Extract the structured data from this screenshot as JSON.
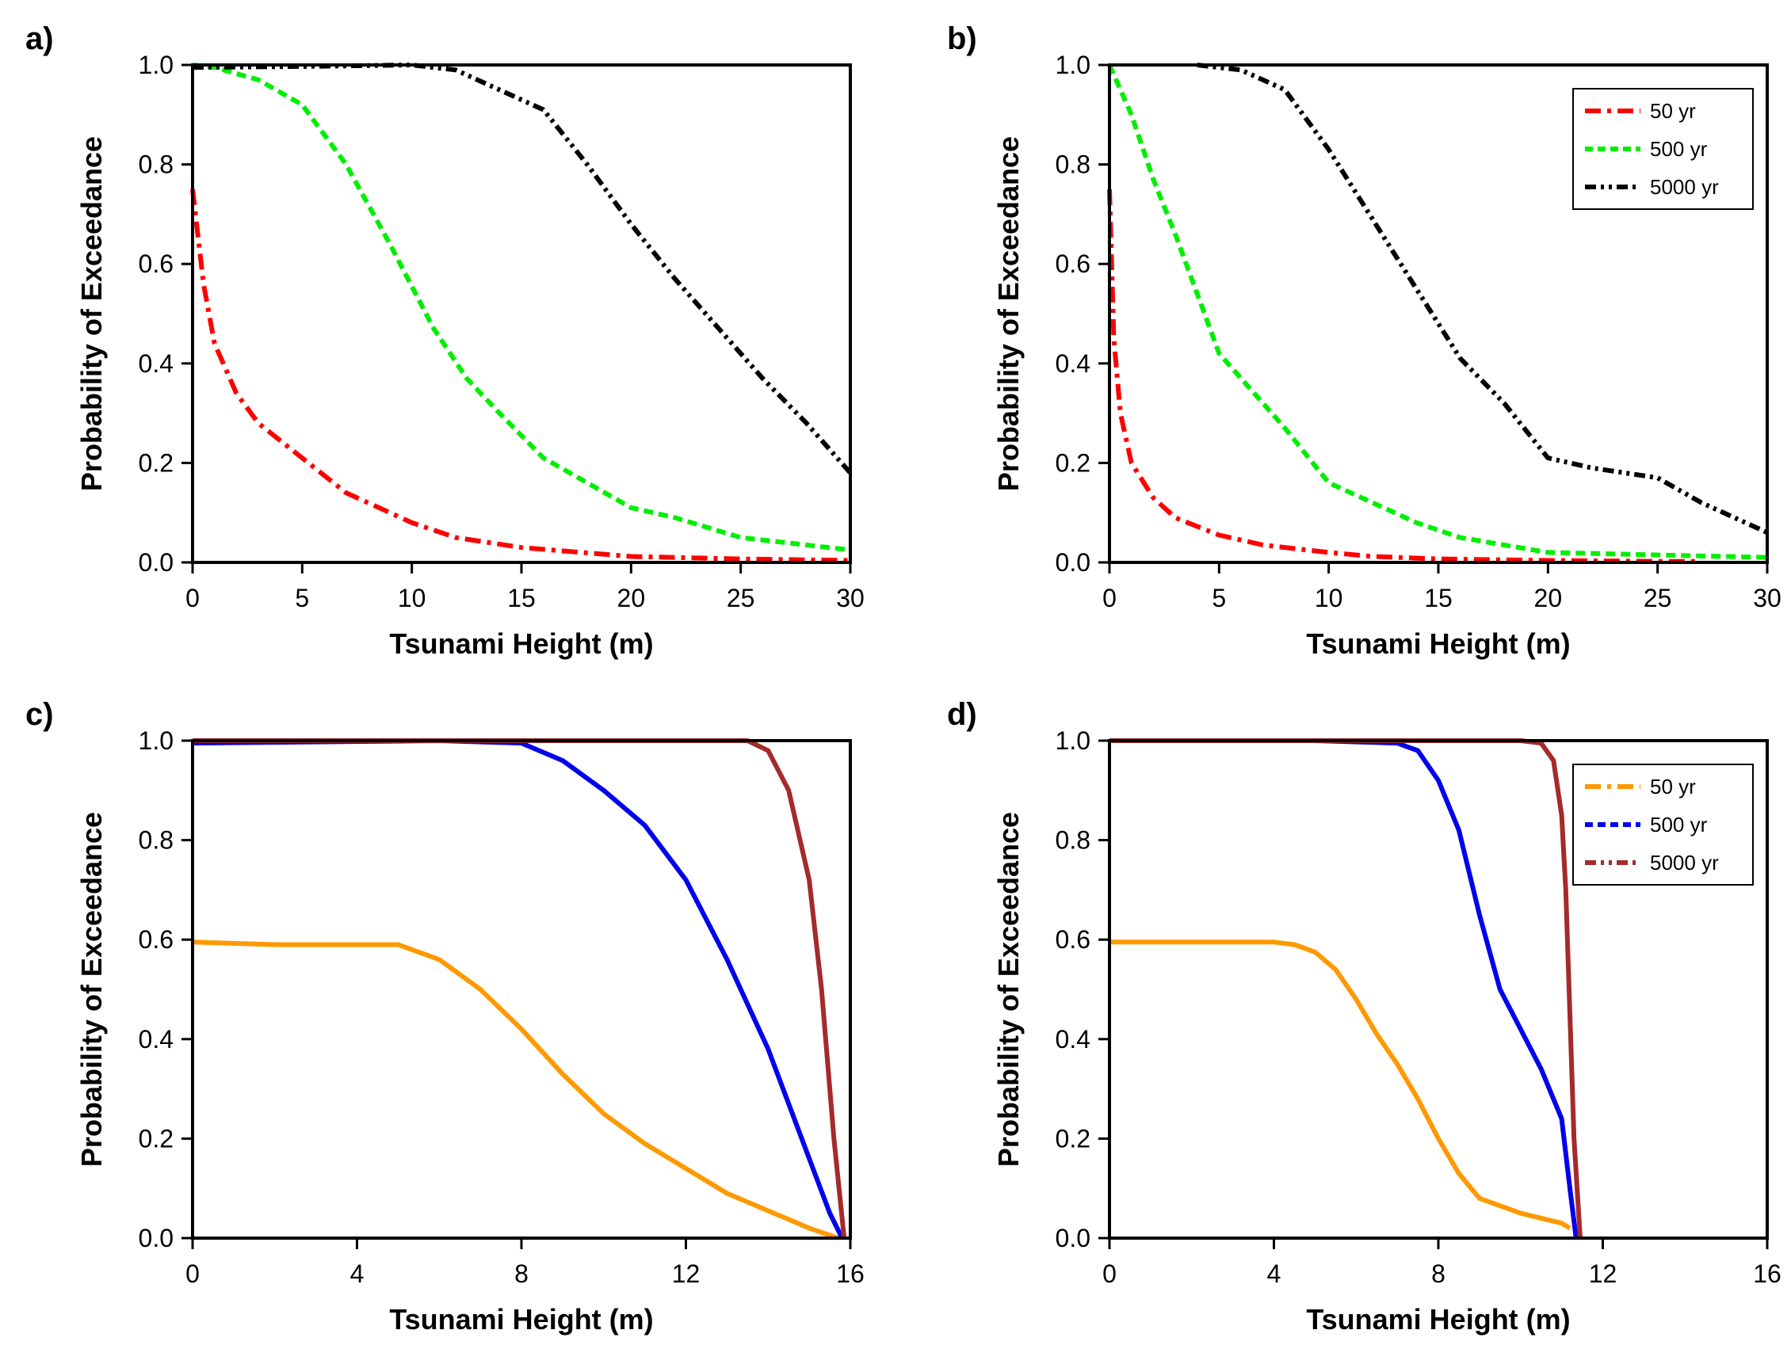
{
  "chart_data": [
    {
      "type": "line",
      "panel_label": "a)",
      "xlabel": "Tsunami Height (m)",
      "ylabel": "Probability of Exceedance",
      "xlim": [
        0,
        30
      ],
      "ylim": [
        0,
        1
      ],
      "xticks": [
        0,
        5,
        10,
        15,
        20,
        25,
        30
      ],
      "xtick_labels": [
        "0",
        "5",
        "10",
        "15",
        "20",
        "25",
        "30"
      ],
      "yticks": [
        0,
        0.2,
        0.4,
        0.6,
        0.8,
        1.0
      ],
      "ytick_labels": [
        "0.0",
        "0.2",
        "0.4",
        "0.6",
        "0.8",
        "1.0"
      ],
      "legend": null,
      "series": [
        {
          "name": "50 yr",
          "color": "#ff0000",
          "style": "dashdot",
          "x": [
            0,
            0.5,
            1,
            2,
            3,
            5,
            7,
            10,
            12,
            15,
            20,
            25,
            30
          ],
          "y": [
            0.75,
            0.56,
            0.44,
            0.34,
            0.28,
            0.21,
            0.14,
            0.08,
            0.05,
            0.03,
            0.012,
            0.007,
            0.004
          ]
        },
        {
          "name": "500 yr",
          "color": "#00ee00",
          "style": "dash",
          "x": [
            0,
            1,
            3,
            5,
            7,
            9,
            11,
            12.5,
            14,
            16,
            18,
            20,
            22,
            25,
            28,
            30
          ],
          "y": [
            1.0,
            0.995,
            0.97,
            0.92,
            0.8,
            0.64,
            0.47,
            0.37,
            0.3,
            0.21,
            0.16,
            0.11,
            0.09,
            0.05,
            0.035,
            0.025
          ]
        },
        {
          "name": "5000 yr",
          "color": "#000000",
          "style": "dashdotdot",
          "x": [
            0,
            5,
            10,
            12,
            14,
            16,
            18,
            20,
            22,
            24,
            26,
            28,
            30
          ],
          "y": [
            0.995,
            0.997,
            1.0,
            0.99,
            0.95,
            0.91,
            0.8,
            0.68,
            0.57,
            0.47,
            0.37,
            0.28,
            0.18
          ]
        }
      ]
    },
    {
      "type": "line",
      "panel_label": "b)",
      "xlabel": "Tsunami Height (m)",
      "ylabel": "Probability of Exceedance",
      "xlim": [
        0,
        30
      ],
      "ylim": [
        0,
        1
      ],
      "xticks": [
        0,
        5,
        10,
        15,
        20,
        25,
        30
      ],
      "xtick_labels": [
        "0",
        "5",
        "10",
        "15",
        "20",
        "25",
        "30"
      ],
      "yticks": [
        0,
        0.2,
        0.4,
        0.6,
        0.8,
        1.0
      ],
      "ytick_labels": [
        "0.0",
        "0.2",
        "0.4",
        "0.6",
        "0.8",
        "1.0"
      ],
      "legend": "top-right",
      "series": [
        {
          "name": "50 yr",
          "color": "#ff0000",
          "style": "dashdot",
          "x": [
            0,
            0.2,
            0.5,
            1,
            2,
            3,
            5,
            7,
            10,
            12,
            15,
            20,
            25,
            27
          ],
          "y": [
            0.75,
            0.45,
            0.3,
            0.2,
            0.13,
            0.09,
            0.055,
            0.035,
            0.02,
            0.012,
            0.007,
            0.004,
            0.002,
            0.002
          ]
        },
        {
          "name": "500 yr",
          "color": "#00ee00",
          "style": "dash",
          "x": [
            0,
            1,
            2,
            3,
            4,
            5,
            7,
            8,
            10,
            12,
            14,
            16,
            18,
            20,
            25,
            30
          ],
          "y": [
            1.0,
            0.9,
            0.77,
            0.66,
            0.54,
            0.42,
            0.32,
            0.27,
            0.16,
            0.12,
            0.08,
            0.05,
            0.035,
            0.02,
            0.015,
            0.01
          ]
        },
        {
          "name": "5000 yr",
          "color": "#000000",
          "style": "dashdotdot",
          "x": [
            4,
            6,
            8,
            10,
            12,
            14,
            16,
            18,
            20,
            22,
            25,
            27,
            30
          ],
          "y": [
            1.0,
            0.99,
            0.95,
            0.83,
            0.69,
            0.55,
            0.41,
            0.32,
            0.21,
            0.19,
            0.17,
            0.12,
            0.06
          ]
        }
      ]
    },
    {
      "type": "line",
      "panel_label": "c)",
      "xlabel": "Tsunami Height (m)",
      "ylabel": "Probability of Exceedance",
      "xlim": [
        0,
        16
      ],
      "ylim": [
        0,
        1
      ],
      "xticks": [
        0,
        4,
        8,
        12,
        16
      ],
      "xtick_labels": [
        "0",
        "4",
        "8",
        "12",
        "16"
      ],
      "yticks": [
        0,
        0.2,
        0.4,
        0.6,
        0.8,
        1.0
      ],
      "ytick_labels": [
        "0.0",
        "0.2",
        "0.4",
        "0.6",
        "0.8",
        "1.0"
      ],
      "legend": null,
      "series": [
        {
          "name": "50 yr",
          "color": "#ff9900",
          "style": "solid",
          "x": [
            0,
            2,
            4,
            5,
            6,
            7,
            8,
            9,
            10,
            11,
            12,
            13,
            14,
            15,
            15.7
          ],
          "y": [
            0.595,
            0.59,
            0.59,
            0.59,
            0.56,
            0.5,
            0.42,
            0.33,
            0.25,
            0.19,
            0.14,
            0.09,
            0.055,
            0.02,
            0.0
          ]
        },
        {
          "name": "500 yr",
          "color": "#0000ee",
          "style": "solid",
          "x": [
            0,
            6,
            8,
            9,
            10,
            11,
            12,
            13,
            14,
            15,
            15.5,
            15.8
          ],
          "y": [
            0.995,
            1.0,
            0.995,
            0.96,
            0.9,
            0.83,
            0.72,
            0.56,
            0.38,
            0.16,
            0.05,
            0.0
          ]
        },
        {
          "name": "5000 yr",
          "color": "#a52a2a",
          "style": "solid",
          "x": [
            0,
            12,
            13.5,
            14,
            14.5,
            15,
            15.3,
            15.6,
            15.85
          ],
          "y": [
            1.0,
            1.0,
            1.0,
            0.98,
            0.9,
            0.72,
            0.5,
            0.2,
            0.0
          ]
        }
      ]
    },
    {
      "type": "line",
      "panel_label": "d)",
      "xlabel": "Tsunami Height (m)",
      "ylabel": "Probability of Exceedance",
      "xlim": [
        0,
        16
      ],
      "ylim": [
        0,
        1
      ],
      "xticks": [
        0,
        4,
        8,
        12,
        16
      ],
      "xtick_labels": [
        "0",
        "4",
        "8",
        "12",
        "16"
      ],
      "yticks": [
        0,
        0.2,
        0.4,
        0.6,
        0.8,
        1.0
      ],
      "ytick_labels": [
        "0.0",
        "0.2",
        "0.4",
        "0.6",
        "0.8",
        "1.0"
      ],
      "legend": "top-right",
      "series": [
        {
          "name": "50 yr",
          "color": "#ff9900",
          "style": "solid",
          "x": [
            0,
            2,
            4,
            4.5,
            5,
            5.5,
            6,
            6.5,
            7,
            7.5,
            8,
            8.5,
            9,
            10,
            11,
            11.2
          ],
          "y": [
            0.595,
            0.595,
            0.595,
            0.59,
            0.575,
            0.54,
            0.48,
            0.41,
            0.35,
            0.28,
            0.2,
            0.13,
            0.08,
            0.05,
            0.03,
            0.02
          ]
        },
        {
          "name": "500 yr",
          "color": "#0000ee",
          "style": "solid",
          "x": [
            0,
            5,
            7,
            7.5,
            8,
            8.5,
            9,
            9.5,
            10,
            10.5,
            11,
            11.2,
            11.35
          ],
          "y": [
            1.0,
            1.0,
            0.995,
            0.98,
            0.92,
            0.82,
            0.65,
            0.5,
            0.42,
            0.34,
            0.24,
            0.1,
            0.0
          ]
        },
        {
          "name": "5000 yr",
          "color": "#a52a2a",
          "style": "solid",
          "x": [
            0,
            8,
            10,
            10.5,
            10.8,
            11,
            11.1,
            11.2,
            11.3,
            11.45
          ],
          "y": [
            1.0,
            1.0,
            1.0,
            0.995,
            0.96,
            0.85,
            0.7,
            0.45,
            0.2,
            0.0
          ]
        }
      ]
    }
  ]
}
